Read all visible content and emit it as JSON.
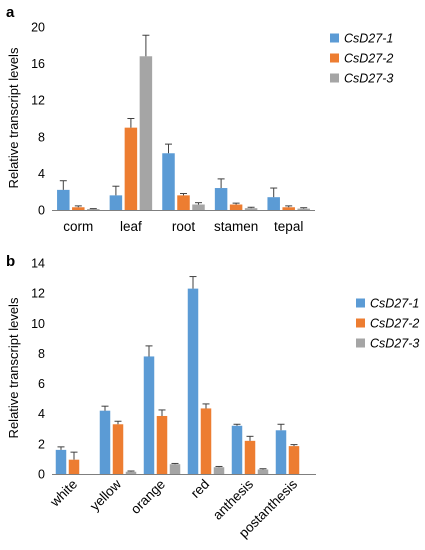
{
  "colors": {
    "series1": "#5B9BD5",
    "series2": "#ED7D31",
    "series3": "#A5A5A5",
    "axis": "#7F7F7F",
    "error": "#404040"
  },
  "chart_data": [
    {
      "panel": "a",
      "type": "bar",
      "categories": [
        "corm",
        "leaf",
        "root",
        "stamen",
        "tepal"
      ],
      "series": [
        {
          "name": "CsD27-1",
          "values": [
            2.2,
            1.6,
            6.2,
            2.4,
            1.4
          ],
          "errors": [
            1.0,
            1.0,
            1.0,
            1.0,
            1.0
          ]
        },
        {
          "name": "CsD27-2",
          "values": [
            0.3,
            9.0,
            1.6,
            0.6,
            0.3
          ],
          "errors": [
            0.15,
            1.0,
            0.2,
            0.15,
            0.15
          ]
        },
        {
          "name": "CsD27-3",
          "values": [
            0.1,
            16.8,
            0.6,
            0.2,
            0.15
          ],
          "errors": [
            0.05,
            2.3,
            0.2,
            0.1,
            0.1
          ]
        }
      ],
      "ylabel": "Relative transcript levels",
      "ylim": [
        0,
        20
      ],
      "yticks": [
        0,
        4,
        8,
        12,
        16,
        20
      ],
      "legend": "top-right"
    },
    {
      "panel": "b",
      "type": "bar",
      "categories": [
        "white",
        "yellow",
        "orange",
        "red",
        "anthesis",
        "postanthesis"
      ],
      "series": [
        {
          "name": "CsD27-1",
          "values": [
            1.6,
            4.2,
            7.8,
            12.3,
            3.2,
            2.9
          ],
          "errors": [
            0.2,
            0.3,
            0.7,
            0.8,
            0.1,
            0.4
          ]
        },
        {
          "name": "CsD27-2",
          "values": [
            0.95,
            3.3,
            3.85,
            4.35,
            2.2,
            1.85
          ],
          "errors": [
            0.5,
            0.2,
            0.4,
            0.3,
            0.3,
            0.1
          ]
        },
        {
          "name": "CsD27-3",
          "values": [
            0.0,
            0.15,
            0.65,
            0.45,
            0.3,
            0.0
          ],
          "errors": [
            0.0,
            0.05,
            0.05,
            0.05,
            0.05,
            0.0
          ]
        }
      ],
      "ylabel": "Relative transcript levels",
      "ylim": [
        0,
        14
      ],
      "yticks": [
        0,
        2,
        4,
        6,
        8,
        10,
        12,
        14
      ],
      "legend": "top-right"
    }
  ]
}
